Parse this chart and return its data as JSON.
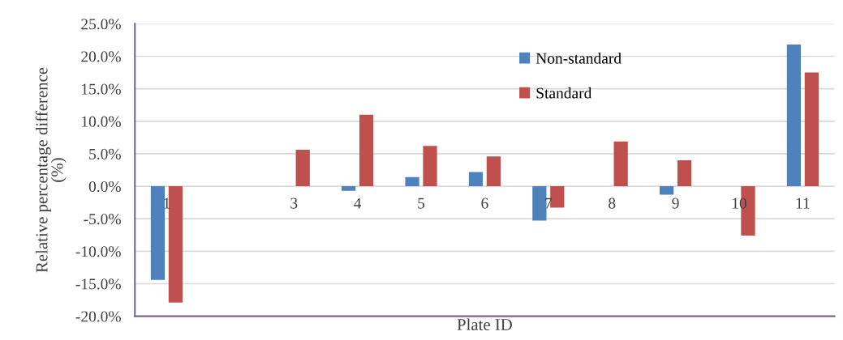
{
  "chart_data": {
    "type": "bar",
    "xlabel": "Plate ID",
    "ylabel": "Relative percentage difference\n(%)",
    "categories": [
      "1",
      null,
      "3",
      "4",
      "5",
      "6",
      "7",
      "8",
      "9",
      "10",
      "11"
    ],
    "series": [
      {
        "name": "Non-standard",
        "color": "#4f81bd",
        "values": [
          -14.4,
          null,
          null,
          -0.7,
          1.4,
          2.2,
          -5.3,
          null,
          -1.3,
          null,
          21.8
        ]
      },
      {
        "name": "Standard",
        "color": "#c0504d",
        "values": [
          -17.9,
          null,
          5.6,
          11.0,
          6.2,
          4.6,
          -3.3,
          6.9,
          4.0,
          -7.6,
          17.5
        ]
      }
    ],
    "ylim": [
      -20,
      25
    ],
    "yticks": [
      {
        "value": -20,
        "label": "-20.0%"
      },
      {
        "value": -15,
        "label": "-15.0%"
      },
      {
        "value": -10,
        "label": "-10.0%"
      },
      {
        "value": -5,
        "label": "-5.0%"
      },
      {
        "value": 0,
        "label": "0.0%"
      },
      {
        "value": 5,
        "label": "5.0%"
      },
      {
        "value": 10,
        "label": "10.0%"
      },
      {
        "value": 15,
        "label": "15.0%"
      },
      {
        "value": 20,
        "label": "20.0%"
      },
      {
        "value": 25,
        "label": "25.0%"
      }
    ],
    "grid": "y",
    "legend": "top right"
  }
}
